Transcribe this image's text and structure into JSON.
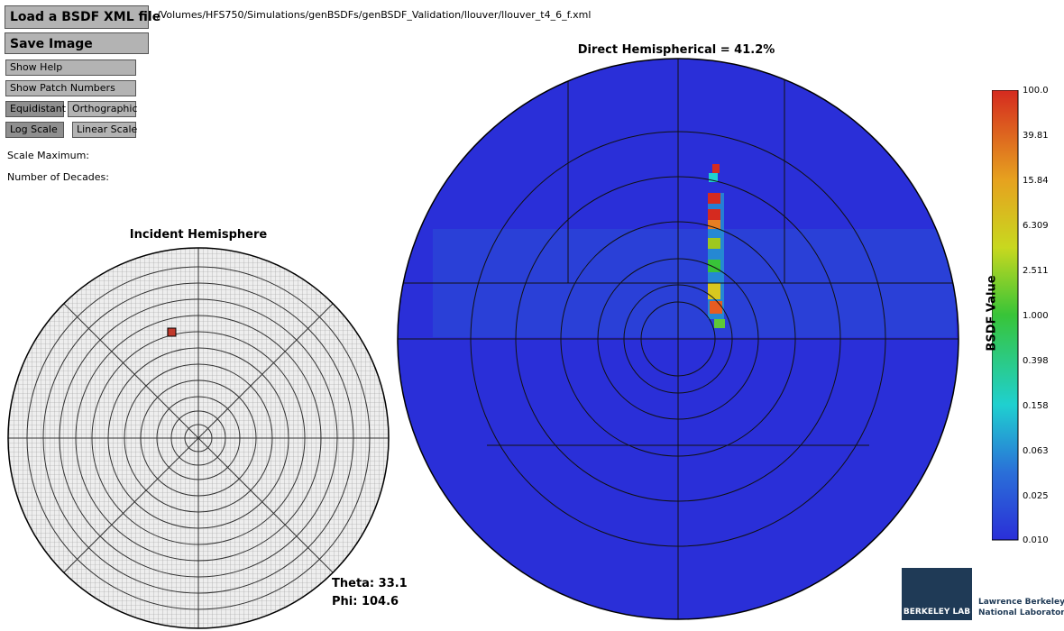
{
  "toolbar": {
    "load_label": "Load a BSDF XML file",
    "file_path": "/Volumes/HFS750/Simulations/genBSDFs/genBSDF_Validation/llouver/llouver_t4_6_f.xml",
    "save_label": "Save Image",
    "help_label": "Show Help",
    "patch_label": "Show Patch Numbers",
    "equidistant_label": "Equidistant",
    "orthographic_label": "Orthographic",
    "log_label": "Log Scale",
    "linear_label": "Linear Scale",
    "scale_max_label": "Scale Maximum:",
    "decades_label": "Number of Decades:"
  },
  "incident": {
    "title": "Incident Hemisphere",
    "theta": "Theta: 33.1",
    "phi": "Phi: 104.6"
  },
  "output": {
    "title": "Direct Hemispherical = 41.2%",
    "base_color": "#2a2fd8"
  },
  "colorbar": {
    "label": "BSDF Value",
    "ticks": [
      "100.0",
      "39.81",
      "15.84",
      "6.309",
      "2.511",
      "1.000",
      "0.398",
      "0.158",
      "0.063",
      "0.025",
      "0.010"
    ]
  },
  "logo": {
    "badge": "BERKELEY LAB",
    "name_line1": "Lawrence Berkeley",
    "name_line2": "National Laboratory"
  }
}
